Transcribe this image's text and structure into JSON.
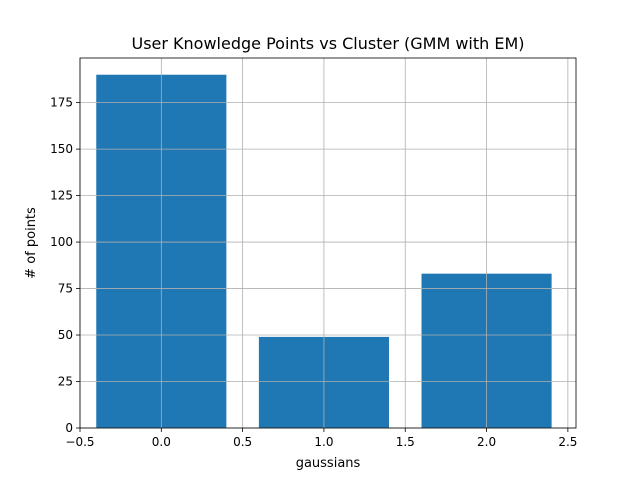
{
  "chart_data": {
    "type": "bar",
    "title": "User Knowledge Points vs Cluster (GMM with EM)",
    "xlabel": "gaussians",
    "ylabel": "# of points",
    "x": [
      0,
      1,
      2
    ],
    "values": [
      190,
      49,
      83
    ],
    "bar_width": 0.8,
    "xlim": [
      -0.5,
      2.55
    ],
    "ylim": [
      0,
      199
    ],
    "xticks": [
      -0.5,
      0.0,
      0.5,
      1.0,
      1.5,
      2.0,
      2.5
    ],
    "xtick_labels": [
      "−0.5",
      "0.0",
      "0.5",
      "1.0",
      "1.5",
      "2.0",
      "2.5"
    ],
    "yticks": [
      0,
      25,
      50,
      75,
      100,
      125,
      150,
      175
    ],
    "ytick_labels": [
      "0",
      "25",
      "50",
      "75",
      "100",
      "125",
      "150",
      "175"
    ],
    "grid": true,
    "bar_color": "#1f77b4"
  }
}
